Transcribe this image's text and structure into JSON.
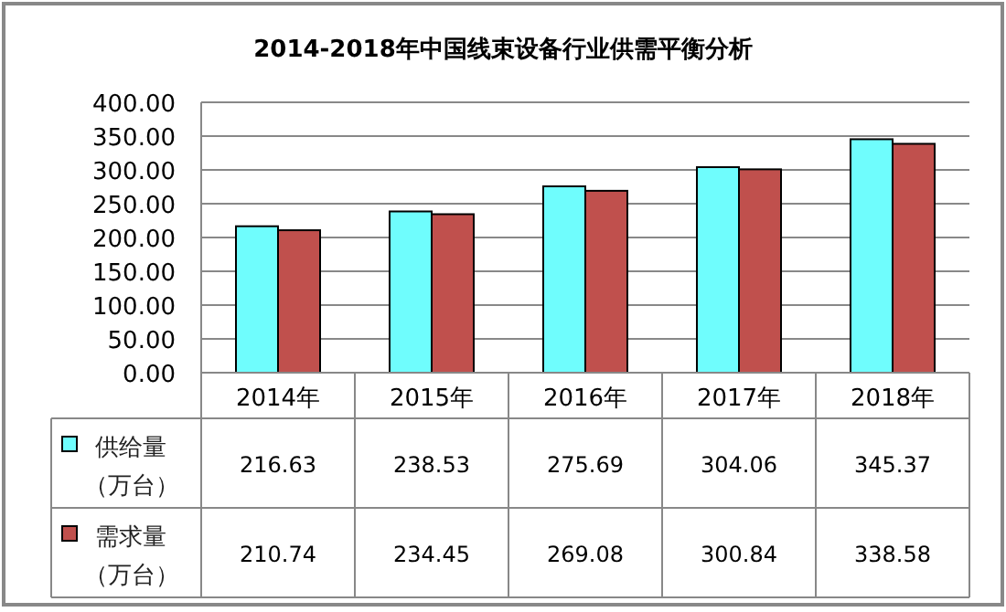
{
  "chart_data": {
    "type": "bar",
    "title": "2014-2018年中国线束设备行业供需平衡分析",
    "categories": [
      "2014年",
      "2015年",
      "2016年",
      "2017年",
      "2018年"
    ],
    "series": [
      {
        "name": "供给量（万台）",
        "color": "#6ffdfd",
        "values": [
          216.63,
          238.53,
          275.69,
          304.06,
          345.37
        ]
      },
      {
        "name": "需求量（万台）",
        "color": "#c0504d",
        "values": [
          210.74,
          234.45,
          269.08,
          300.84,
          338.58
        ]
      }
    ],
    "ylim": [
      0,
      400
    ],
    "yticks": [
      {
        "value": 0,
        "label": "0.00"
      },
      {
        "value": 50,
        "label": "50.00"
      },
      {
        "value": 100,
        "label": "100.00"
      },
      {
        "value": 150,
        "label": "150.00"
      },
      {
        "value": 200,
        "label": "200.00"
      },
      {
        "value": 250,
        "label": "250.00"
      },
      {
        "value": 300,
        "label": "300.00"
      },
      {
        "value": 350,
        "label": "350.00"
      },
      {
        "value": 400,
        "label": "400.00"
      }
    ],
    "grid": "y",
    "legend": "bottom left",
    "data_labels": true
  }
}
